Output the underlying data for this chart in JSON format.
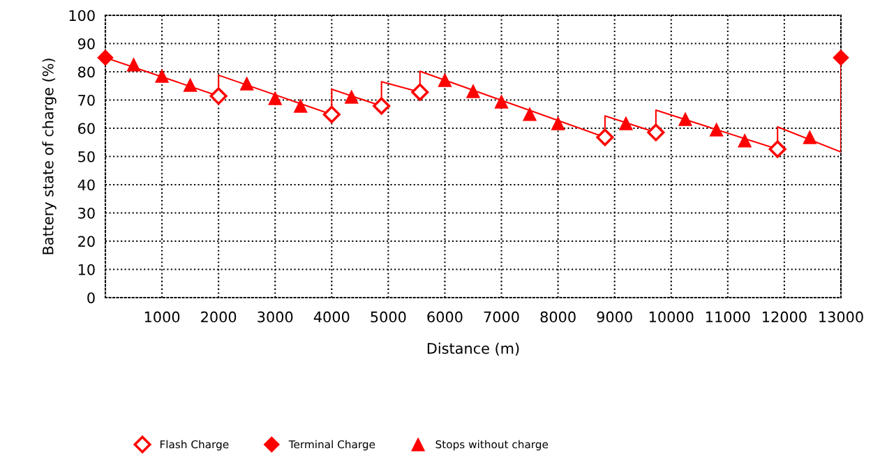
{
  "chart_data": {
    "type": "line",
    "xlabel": "Distance (m)",
    "ylabel": "Battery state of charge (%)",
    "xlim": [
      0,
      13000
    ],
    "ylim": [
      0,
      100
    ],
    "xticks": [
      1000,
      2000,
      3000,
      4000,
      5000,
      6000,
      7000,
      8000,
      9000,
      10000,
      11000,
      12000,
      13000
    ],
    "yticks": [
      0,
      10,
      20,
      30,
      40,
      50,
      60,
      70,
      80,
      90,
      100
    ],
    "grid": true,
    "legend": "bottom",
    "series": [
      {
        "color": "#ff0000",
        "marker": "none",
        "line_style": "solid",
        "x": [
          0,
          2000,
          2000,
          4000,
          4000,
          4880,
          4880,
          5560,
          5560,
          8830,
          8830,
          9730,
          9730,
          11880,
          11880,
          13000,
          13000
        ],
        "values": [
          85,
          71.4,
          78.8,
          64.9,
          73.8,
          67.9,
          76.5,
          72.8,
          80.2,
          56.8,
          64.4,
          58.5,
          66.4,
          52.6,
          60.5,
          51.6,
          85
        ]
      },
      {
        "type": "scatter",
        "name": "Flash Charge",
        "color": "#ff0000",
        "marker": "diamond_open",
        "x": [
          2000,
          4000,
          4880,
          5560,
          8830,
          9730,
          11880
        ],
        "values": [
          71.4,
          64.9,
          67.9,
          72.8,
          56.8,
          58.5,
          52.6
        ]
      },
      {
        "type": "scatter",
        "name": "Terminal Charge",
        "color": "#ff0000",
        "marker": "diamond",
        "x": [
          0,
          13000
        ],
        "values": [
          85,
          85
        ]
      },
      {
        "type": "scatter",
        "name": "Stops without charge",
        "color": "#ff0000",
        "marker": "triangle",
        "x": [
          500,
          1000,
          1500,
          2500,
          3000,
          3450,
          4350,
          6000,
          6500,
          7000,
          7500,
          8000,
          9200,
          10250,
          10800,
          11300,
          12450
        ],
        "values": [
          82.5,
          78.5,
          75.3,
          75.8,
          70.6,
          67.9,
          71.1,
          77.0,
          73.1,
          69.4,
          65.0,
          61.7,
          61.7,
          63.2,
          59.5,
          55.6,
          56.8
        ]
      }
    ]
  }
}
